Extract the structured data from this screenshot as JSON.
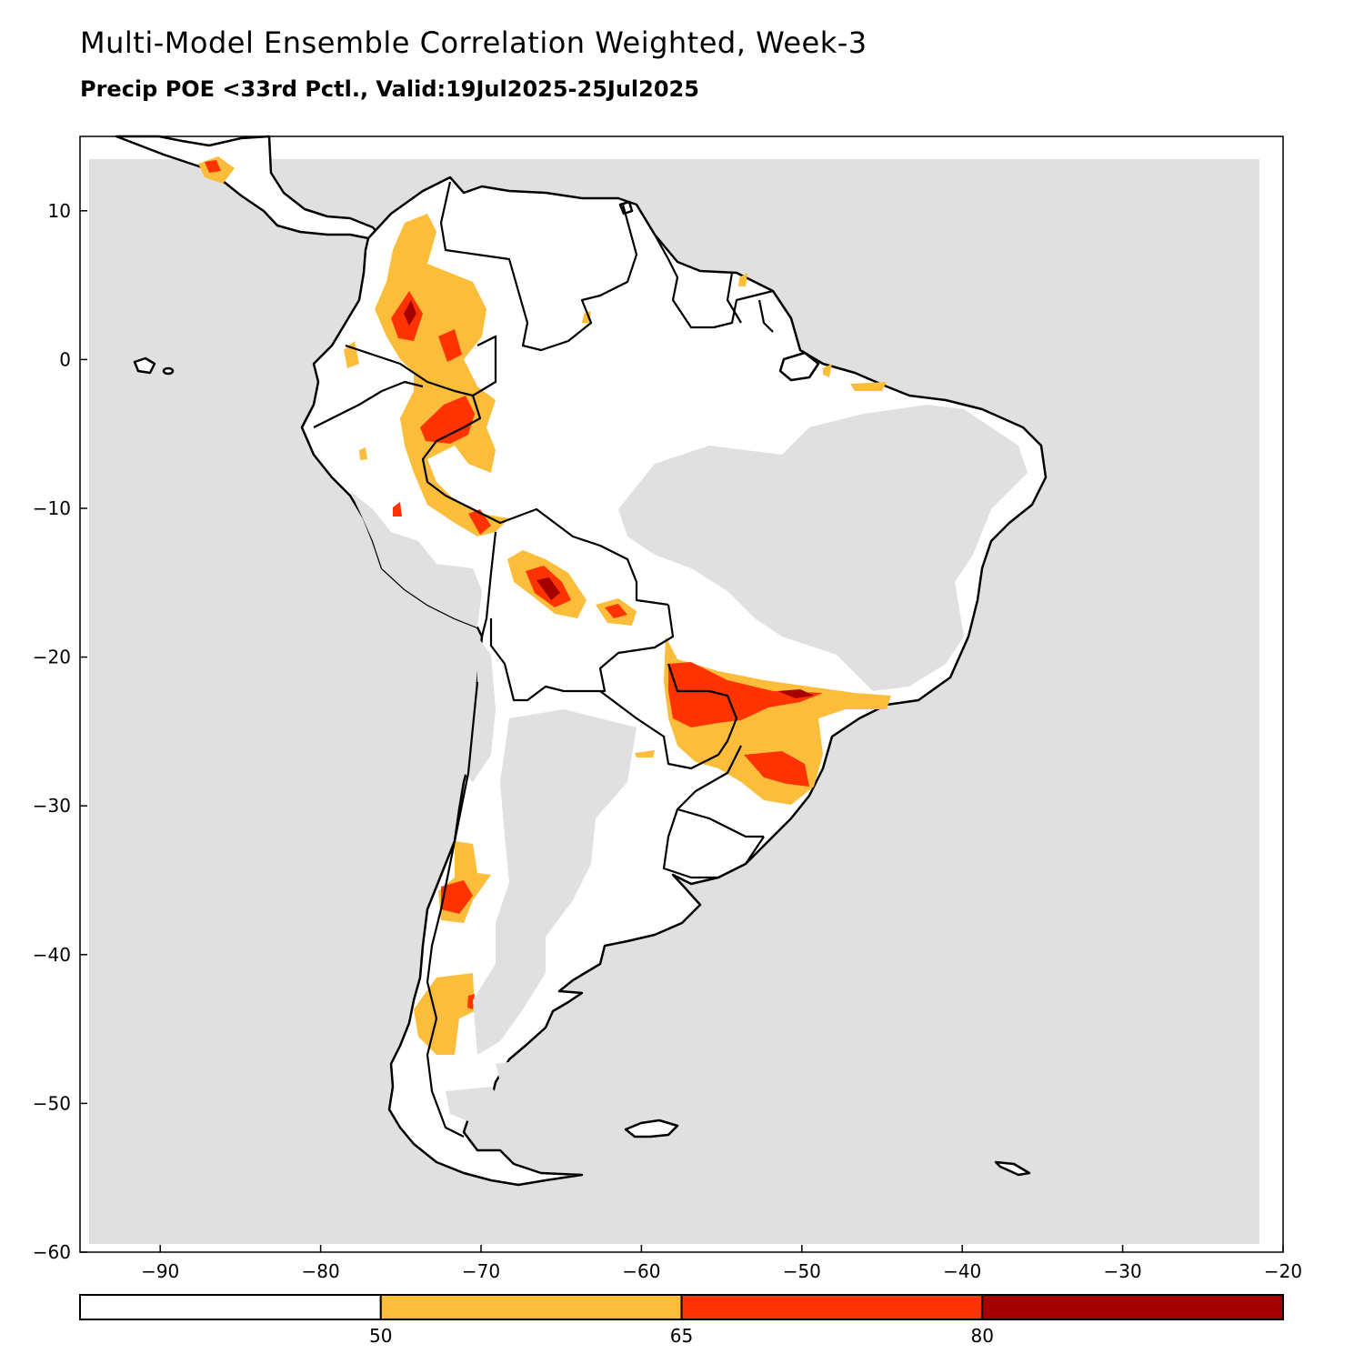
{
  "title": "Multi-Model Ensemble Correlation Weighted, Week-3",
  "subtitle": "Precip POE <33rd Pctl., Valid:19Jul2025-25Jul2025",
  "map": {
    "region": "South America",
    "lon_range": [
      -95,
      -20
    ],
    "lat_range": [
      -60,
      15
    ],
    "x_ticks": [
      -90,
      -80,
      -70,
      -60,
      -50,
      -40,
      -30,
      -20
    ],
    "y_ticks": [
      10,
      0,
      -10,
      -20,
      -30,
      -40,
      -50,
      -60
    ],
    "x_tick_labels": [
      "−90",
      "−80",
      "−70",
      "−60",
      "−50",
      "−40",
      "−30",
      "−20"
    ],
    "y_tick_labels": [
      "10",
      "0",
      "−10",
      "−20",
      "−30",
      "−40",
      "−50",
      "−60"
    ],
    "no_data_color": "#e0e0e0",
    "land_color": "#ffffff"
  },
  "colorbar": {
    "colors": [
      "#ffffff",
      "#fbbd3a",
      "#ff3300",
      "#a50000"
    ],
    "boundaries": [
      50,
      65,
      80
    ],
    "labels": [
      "50",
      "65",
      "80"
    ]
  }
}
